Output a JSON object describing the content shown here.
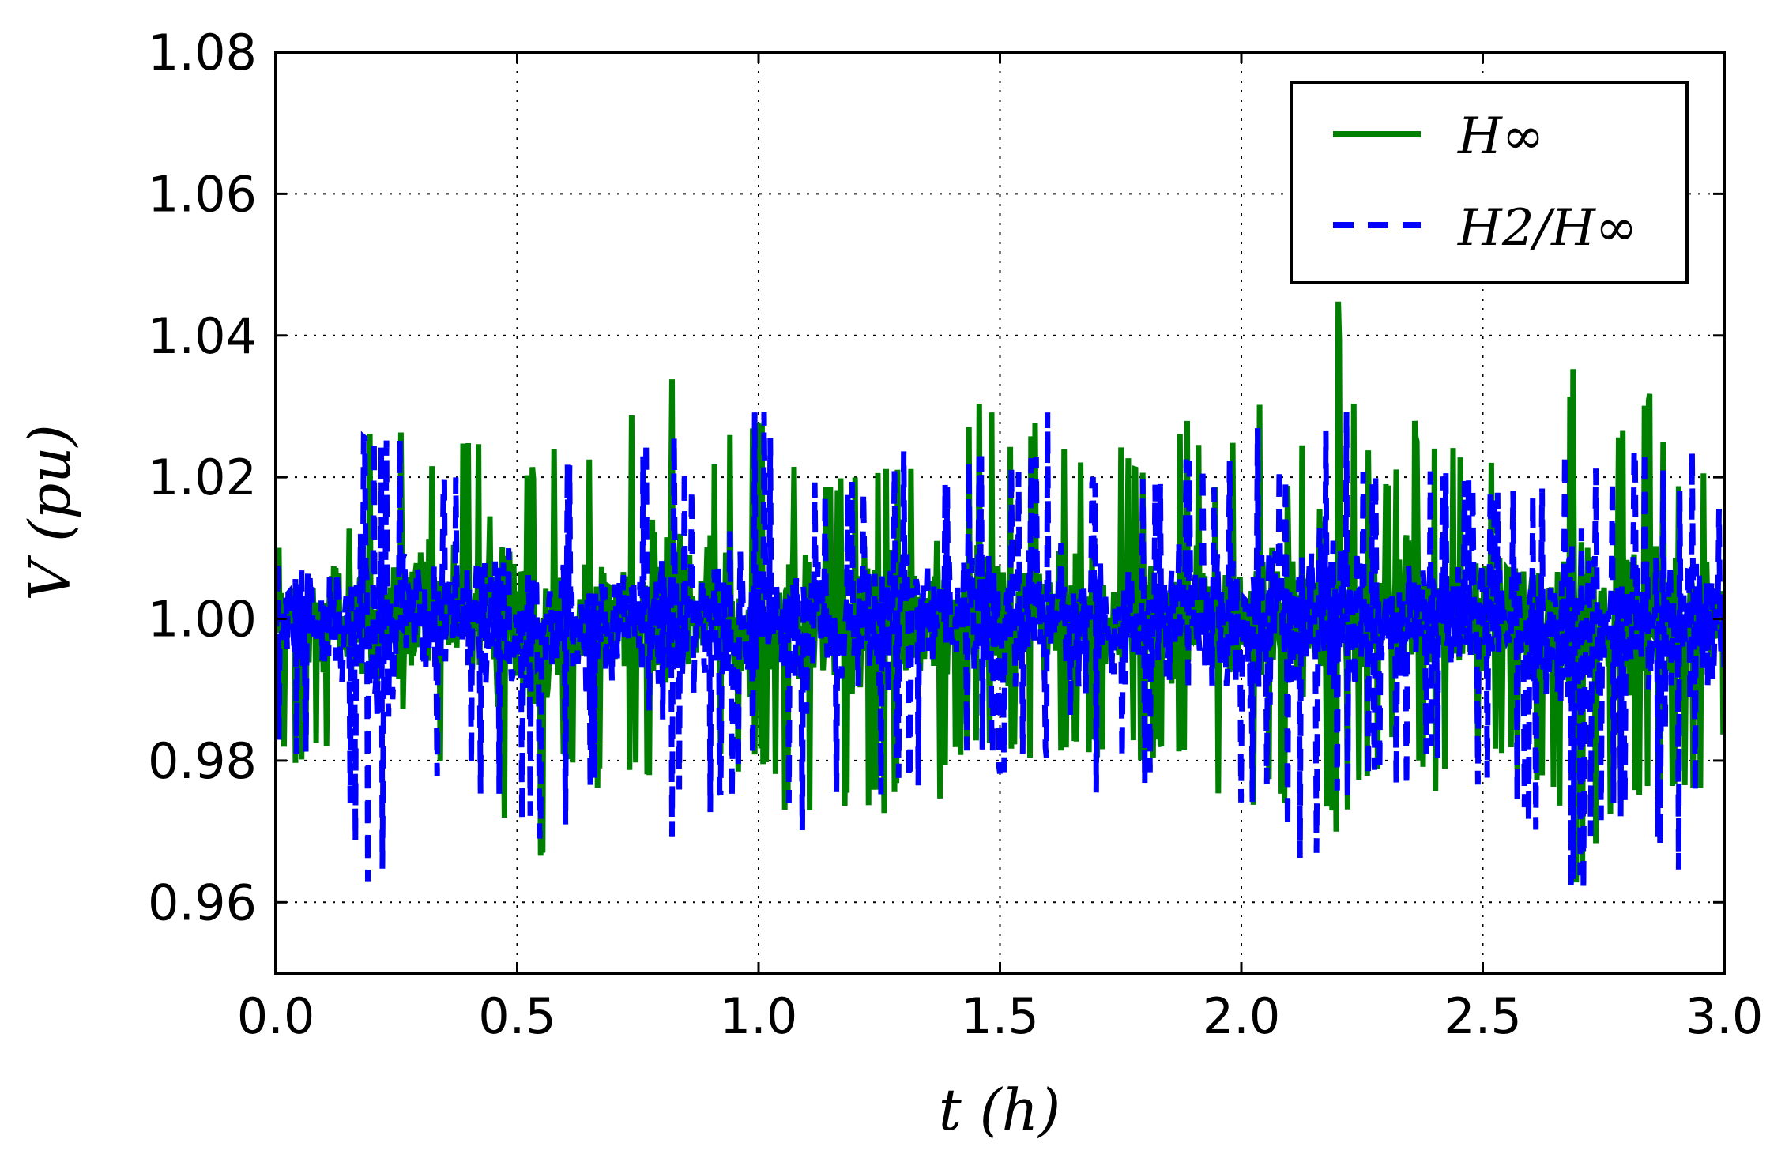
{
  "chart_data": {
    "type": "line",
    "xlabel": "t (h)",
    "ylabel": "V (pu)",
    "xlim": [
      0.0,
      3.0
    ],
    "ylim": [
      0.95,
      1.08
    ],
    "xticks": [
      0.0,
      0.5,
      1.0,
      1.5,
      2.0,
      2.5,
      3.0
    ],
    "xtick_labels": [
      "0.0",
      "0.5",
      "1.0",
      "1.5",
      "2.0",
      "2.5",
      "3.0"
    ],
    "yticks": [
      0.96,
      0.98,
      1.0,
      1.02,
      1.04,
      1.06,
      1.08
    ],
    "ytick_labels": [
      "0.96",
      "0.98",
      "1.00",
      "1.02",
      "1.04",
      "1.06",
      "1.08"
    ],
    "grid": true,
    "legend_position": "top-right",
    "legend_entries": [
      "H∞",
      "H2/H∞"
    ],
    "series": [
      {
        "name": "H∞",
        "color": "#008000",
        "line_style": "solid",
        "x": [
          0.0,
          0.05,
          0.1,
          0.15,
          0.2,
          0.25,
          0.3,
          0.35,
          0.4,
          0.45,
          0.5,
          0.55,
          0.6,
          0.65,
          0.7,
          0.75,
          0.8,
          0.85,
          0.9,
          0.95,
          1.0,
          1.05,
          1.1,
          1.15,
          1.2,
          1.25,
          1.3,
          1.35,
          1.4,
          1.45,
          1.5,
          1.55,
          1.6,
          1.65,
          1.7,
          1.75,
          1.8,
          1.85,
          1.9,
          1.95,
          2.0,
          2.05,
          2.1,
          2.15,
          2.2,
          2.25,
          2.3,
          2.35,
          2.4,
          2.45,
          2.5,
          2.55,
          2.6,
          2.65,
          2.7,
          2.75,
          2.8,
          2.85,
          2.9,
          2.95,
          3.0
        ],
        "y_max": [
          1.01,
          1.02,
          1.02,
          1.033,
          1.028,
          1.03,
          1.025,
          1.022,
          1.027,
          1.027,
          1.025,
          1.02,
          1.028,
          1.025,
          1.029,
          1.03,
          1.038,
          1.03,
          1.025,
          1.028,
          1.032,
          1.02,
          1.025,
          1.02,
          1.022,
          1.024,
          1.023,
          1.025,
          1.02,
          1.033,
          1.03,
          1.025,
          1.036,
          1.022,
          1.025,
          1.028,
          1.02,
          1.025,
          1.03,
          1.02,
          1.028,
          1.034,
          1.02,
          1.03,
          1.046,
          1.026,
          1.02,
          1.03,
          1.025,
          1.025,
          1.023,
          1.025,
          1.024,
          1.02,
          1.043,
          1.02,
          1.03,
          1.032,
          1.02,
          1.025,
          1.018
        ],
        "y_min": [
          0.98,
          0.978,
          0.982,
          0.98,
          0.969,
          0.966,
          0.975,
          0.978,
          0.98,
          0.967,
          0.975,
          0.963,
          0.98,
          0.975,
          0.978,
          0.978,
          0.975,
          0.98,
          0.98,
          0.975,
          0.98,
          0.972,
          0.97,
          0.972,
          0.972,
          0.972,
          0.974,
          0.967,
          0.98,
          0.982,
          0.98,
          0.98,
          0.98,
          0.982,
          0.98,
          0.98,
          0.98,
          0.98,
          0.982,
          0.975,
          0.97,
          0.975,
          0.972,
          0.968,
          0.97,
          0.975,
          0.98,
          0.982,
          0.975,
          0.978,
          0.98,
          0.98,
          0.975,
          0.975,
          0.957,
          0.97,
          0.975,
          0.972,
          0.975,
          0.975,
          0.982
        ]
      },
      {
        "name": "H2/H∞",
        "color": "#0000ff",
        "line_style": "dashed",
        "x": [
          0.0,
          0.05,
          0.1,
          0.15,
          0.2,
          0.25,
          0.3,
          0.35,
          0.4,
          0.45,
          0.5,
          0.55,
          0.6,
          0.65,
          0.7,
          0.75,
          0.8,
          0.85,
          0.9,
          0.95,
          1.0,
          1.05,
          1.1,
          1.15,
          1.2,
          1.25,
          1.3,
          1.35,
          1.4,
          1.45,
          1.5,
          1.55,
          1.6,
          1.65,
          1.7,
          1.75,
          1.8,
          1.85,
          1.9,
          1.95,
          2.0,
          2.05,
          2.1,
          2.15,
          2.2,
          2.25,
          2.3,
          2.35,
          2.4,
          2.45,
          2.5,
          2.55,
          2.6,
          2.65,
          2.7,
          2.75,
          2.8,
          2.85,
          2.9,
          2.95,
          3.0
        ],
        "y_max": [
          1.008,
          1.022,
          1.02,
          1.03,
          1.028,
          1.03,
          1.025,
          1.02,
          1.025,
          1.03,
          1.022,
          1.02,
          1.025,
          1.02,
          1.025,
          1.025,
          1.032,
          1.02,
          1.02,
          1.03,
          1.032,
          1.02,
          1.02,
          1.018,
          1.02,
          1.022,
          1.025,
          1.025,
          1.02,
          1.025,
          1.025,
          1.02,
          1.03,
          1.02,
          1.022,
          1.028,
          1.02,
          1.02,
          1.025,
          1.02,
          1.025,
          1.03,
          1.02,
          1.025,
          1.036,
          1.022,
          1.02,
          1.025,
          1.02,
          1.022,
          1.02,
          1.02,
          1.02,
          1.02,
          1.032,
          1.02,
          1.025,
          1.025,
          1.02,
          1.026,
          1.015
        ],
        "y_min": [
          0.982,
          0.978,
          0.985,
          0.972,
          0.959,
          0.97,
          0.975,
          0.975,
          0.978,
          0.972,
          0.968,
          0.968,
          0.97,
          0.975,
          0.98,
          0.978,
          0.96,
          0.978,
          0.97,
          0.975,
          0.98,
          0.975,
          0.967,
          0.975,
          0.975,
          0.975,
          0.978,
          0.975,
          0.98,
          0.982,
          0.978,
          0.978,
          0.98,
          0.972,
          0.975,
          0.98,
          0.975,
          0.975,
          0.98,
          0.968,
          0.972,
          0.975,
          0.965,
          0.963,
          0.972,
          0.975,
          0.975,
          0.975,
          0.98,
          0.978,
          0.975,
          0.975,
          0.97,
          0.968,
          0.958,
          0.972,
          0.972,
          0.97,
          0.962,
          0.975,
          0.985
        ]
      }
    ]
  }
}
